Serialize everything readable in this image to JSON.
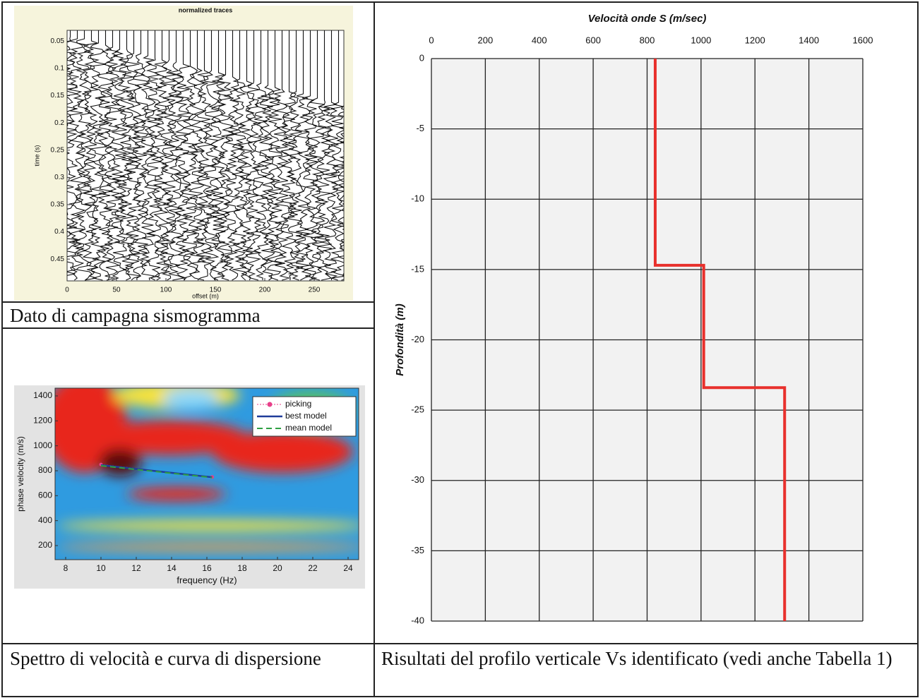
{
  "chart_data": [
    {
      "type": "seismogram",
      "title": "normalized traces",
      "xlabel": "offset (m)",
      "ylabel": "time (s)",
      "xlim": [
        0,
        280
      ],
      "xticks": [
        0,
        50,
        100,
        150,
        200,
        250
      ],
      "ylim": [
        0.03,
        0.49
      ],
      "yticks": [
        {
          "value": 0.05,
          "label": "0.05"
        },
        0.1,
        {
          "value": 0.15,
          "label": "0.15"
        },
        0.2,
        {
          "value": 0.25,
          "label": "0.25"
        },
        0.3,
        {
          "value": 0.35,
          "label": "0.35"
        },
        0.4,
        {
          "value": 0.45,
          "label": "0.45"
        }
      ],
      "inverted_y": true
    },
    {
      "type": "dispersion",
      "xlabel": "frequency (Hz)",
      "ylabel": "phase velocity (m/s)",
      "xlim": [
        7.4,
        24.6
      ],
      "xticks": [
        8,
        10,
        12,
        14,
        16,
        18,
        20,
        22,
        24
      ],
      "ylim": [
        87,
        1462
      ],
      "yticks": [
        200,
        400,
        600,
        800,
        1000,
        1200,
        1400
      ],
      "series": [
        {
          "name": "picking",
          "color": "#e8408a",
          "x": [
            10,
            16.3
          ],
          "values": [
            850,
            750
          ]
        },
        {
          "name": "best model",
          "color": "#1f3c99",
          "x": [
            10,
            16.3
          ],
          "values": [
            845,
            748
          ]
        },
        {
          "name": "mean model",
          "color": "#2ea043",
          "x": [
            10,
            16.3
          ],
          "values": [
            840,
            745
          ]
        }
      ]
    },
    {
      "type": "step",
      "title": "Velocità onde S (m/sec)",
      "ylabel": "Profondità (m)",
      "xlim": [
        0,
        1600
      ],
      "xticks": [
        0,
        200,
        400,
        600,
        800,
        1000,
        1200,
        1400,
        1600
      ],
      "ylim": [
        -40,
        0
      ],
      "yticks": [
        0,
        -5,
        -10,
        -15,
        -20,
        -25,
        -30,
        -35,
        -40
      ],
      "grid": true,
      "series": [
        {
          "color": "#e8302c",
          "x": [
            830,
            830,
            1010,
            1010,
            1310,
            1310
          ],
          "values": [
            0,
            -14.7,
            -14.7,
            -23.4,
            -23.4,
            -40
          ]
        }
      ]
    }
  ],
  "captions": [
    "Dato di campagna sismogramma",
    "Spettro di velocità e curva di dispersione",
    "Risultati del profilo verticale Vs identificato (vedi anche Tabella 1)"
  ]
}
